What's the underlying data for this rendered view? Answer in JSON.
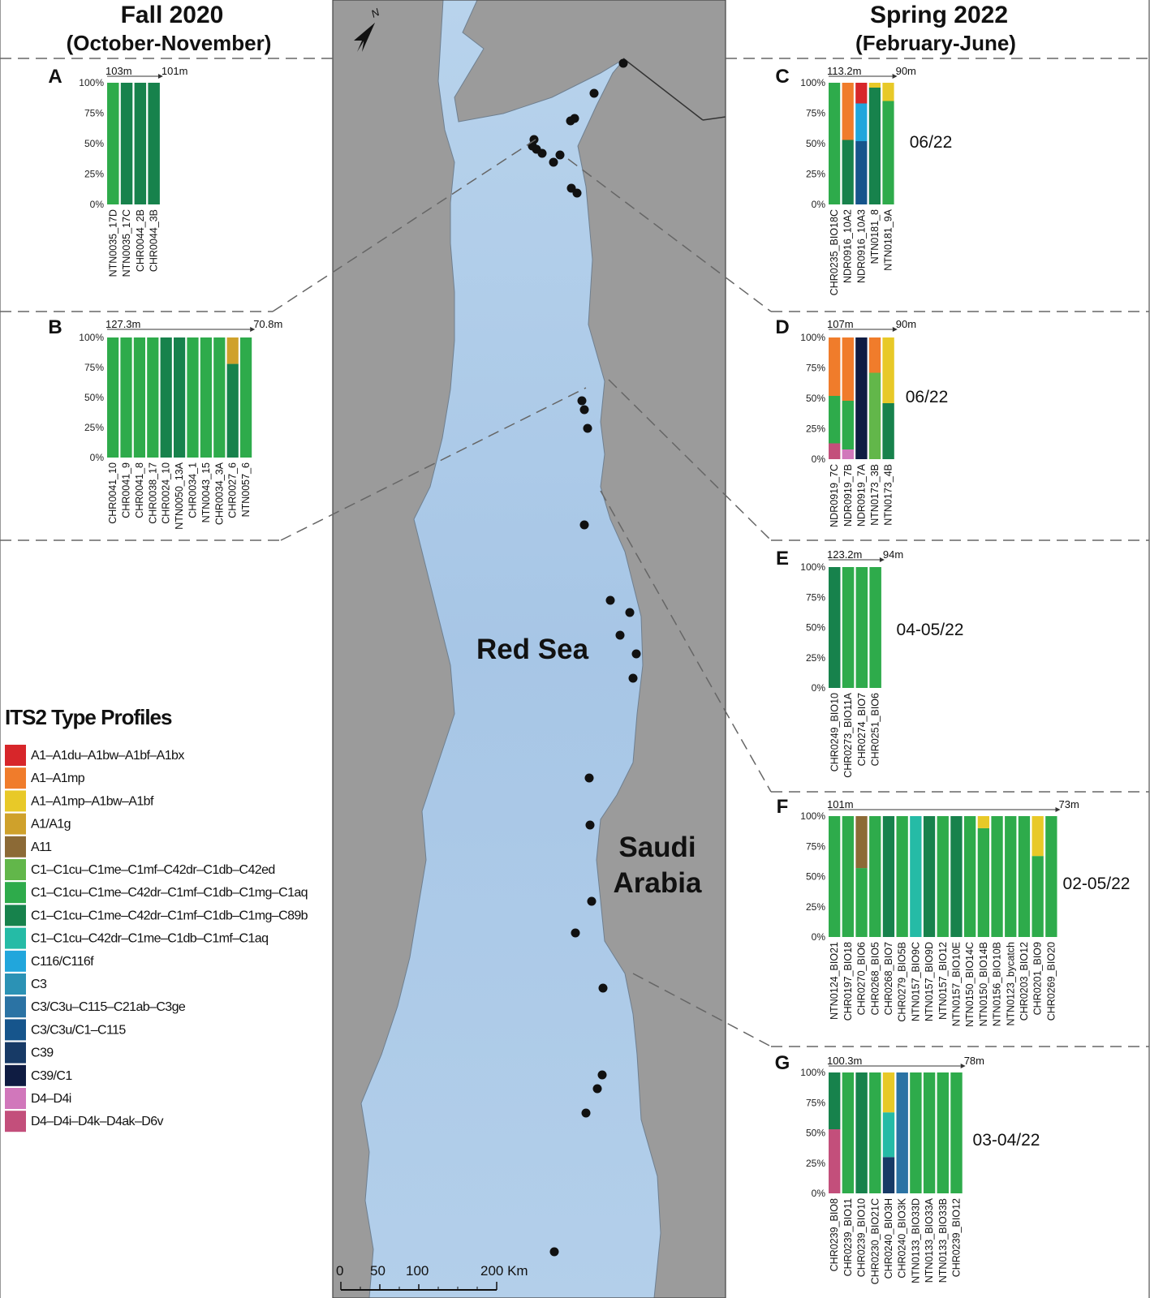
{
  "headers": {
    "left_title": "Fall 2020",
    "left_subtitle": "(October-November)",
    "right_title": "Spring 2022",
    "right_subtitle": "(February-June)"
  },
  "map": {
    "sea_label": "Red Sea",
    "land_label_1": "Saudi",
    "land_label_2": "Arabia",
    "north_label": "N",
    "scale_0": "0",
    "scale_50": "50",
    "scale_100": "100",
    "scale_200": "200 Km"
  },
  "legend": {
    "title": "ITS2 Type Profiles",
    "items": [
      {
        "label": "A1–A1du–A1bw–A1bf–A1bx",
        "color": "#d7262a"
      },
      {
        "label": "A1–A1mp",
        "color": "#f07c2b"
      },
      {
        "label": "A1–A1mp–A1bw–A1bf",
        "color": "#e8c928"
      },
      {
        "label": "A1/A1g",
        "color": "#cfa12b"
      },
      {
        "label": "A11",
        "color": "#8c6a36"
      },
      {
        "label": "C1–C1cu–C1me–C1mf–C42dr–C1db–C42ed",
        "color": "#62b74a"
      },
      {
        "label": "C1–C1cu–C1me–C42dr–C1mf–C1db–C1mg–C1aq",
        "color": "#2eab4b"
      },
      {
        "label": "C1–C1cu–C1me–C42dr–C1mf–C1db–C1mg–C89b",
        "color": "#17824c"
      },
      {
        "label": "C1–C1cu–C42dr–C1me–C1db–C1mf–C1aq",
        "color": "#25bba6"
      },
      {
        "label": "C116/C116f",
        "color": "#21a6dc"
      },
      {
        "label": "C3",
        "color": "#2b92b5"
      },
      {
        "label": "C3/C3u–C115–C21ab–C3ge",
        "color": "#2b73a4"
      },
      {
        "label": "C3/C3u/C1–C115",
        "color": "#16558c"
      },
      {
        "label": "C39",
        "color": "#173a66"
      },
      {
        "label": "C39/C1",
        "color": "#0f1c42"
      },
      {
        "label": "D4–D4i",
        "color": "#d177bb"
      },
      {
        "label": "D4–D4i–D4k–D4ak–D6v",
        "color": "#c34f7b"
      }
    ]
  },
  "chart_data": [
    {
      "type": "bar",
      "panel": "A",
      "season": "Fall 2020",
      "depth_start": "103m",
      "depth_end": "101m",
      "ytick_labels": [
        "100%",
        "75%",
        "50%",
        "25%",
        "0%"
      ],
      "categories": [
        "NTN0035_17D",
        "NTN0035_17C",
        "CHR0044_2B",
        "CHR0044_3B"
      ],
      "stacks": [
        [
          [
            "C1–C1cu–C1me–C42dr–C1mf–C1db–C1mg–C1aq",
            100
          ]
        ],
        [
          [
            "C1–C1cu–C1me–C42dr–C1mf–C1db–C1mg–C89b",
            100
          ]
        ],
        [
          [
            "C1–C1cu–C1me–C42dr–C1mf–C1db–C1mg–C89b",
            100
          ]
        ],
        [
          [
            "C1–C1cu–C1me–C42dr–C1mf–C1db–C1mg–C89b",
            100
          ]
        ]
      ]
    },
    {
      "type": "bar",
      "panel": "B",
      "season": "Fall 2020",
      "depth_start": "127.3m",
      "depth_end": "70.8m",
      "ytick_labels": [
        "100%",
        "75%",
        "50%",
        "25%",
        "0%"
      ],
      "categories": [
        "CHR0041_10",
        "CHR0041_9",
        "CHR0041_8",
        "CHR0038_17",
        "CHR0024_10",
        "NTN0050_13A",
        "CHR0034_1",
        "NTN0043_15",
        "CHR0034_3A",
        "CHR0027_6",
        "NTN0057_6"
      ],
      "stacks": [
        [
          [
            "C1–C1cu–C1me–C42dr–C1mf–C1db–C1mg–C1aq",
            100
          ]
        ],
        [
          [
            "C1–C1cu–C1me–C42dr–C1mf–C1db–C1mg–C1aq",
            100
          ]
        ],
        [
          [
            "C1–C1cu–C1me–C42dr–C1mf–C1db–C1mg–C1aq",
            100
          ]
        ],
        [
          [
            "C1–C1cu–C1me–C42dr–C1mf–C1db–C1mg–C1aq",
            100
          ]
        ],
        [
          [
            "C1–C1cu–C1me–C42dr–C1mf–C1db–C1mg–C89b",
            100
          ]
        ],
        [
          [
            "C1–C1cu–C1me–C42dr–C1mf–C1db–C1mg–C89b",
            100
          ]
        ],
        [
          [
            "C1–C1cu–C1me–C42dr–C1mf–C1db–C1mg–C1aq",
            100
          ]
        ],
        [
          [
            "C1–C1cu–C1me–C42dr–C1mf–C1db–C1mg–C1aq",
            100
          ]
        ],
        [
          [
            "C1–C1cu–C1me–C42dr–C1mf–C1db–C1mg–C1aq",
            100
          ]
        ],
        [
          [
            "C1–C1cu–C1me–C42dr–C1mf–C1db–C1mg–C89b",
            78
          ],
          [
            "A1/A1g",
            22
          ]
        ],
        [
          [
            "C1–C1cu–C1me–C42dr–C1mf–C1db–C1mg–C1aq",
            100
          ]
        ]
      ]
    },
    {
      "type": "bar",
      "panel": "C",
      "season": "Spring 2022",
      "date_label": "06/22",
      "depth_start": "113.2m",
      "depth_end": "90m",
      "ytick_labels": [
        "100%",
        "75%",
        "50%",
        "25%",
        "0%"
      ],
      "categories": [
        "CHR0235_BIO18C",
        "NDR0916_10A2",
        "NDR0916_10A3",
        "NTN0181_8",
        "NTN0181_9A"
      ],
      "stacks": [
        [
          [
            "C1–C1cu–C1me–C42dr–C1mf–C1db–C1mg–C1aq",
            100
          ]
        ],
        [
          [
            "C1–C1cu–C1me–C42dr–C1mf–C1db–C1mg–C89b",
            53
          ],
          [
            "A1–A1mp",
            47
          ]
        ],
        [
          [
            "C3/C3u/C1–C115",
            52
          ],
          [
            "C116/C116f",
            31
          ],
          [
            "A1–A1du–A1bw–A1bf–A1bx",
            17
          ]
        ],
        [
          [
            "C1–C1cu–C1me–C42dr–C1mf–C1db–C1mg–C89b",
            96
          ],
          [
            "A1–A1mp–A1bw–A1bf",
            4
          ]
        ],
        [
          [
            "C1–C1cu–C1me–C42dr–C1mf–C1db–C1mg–C1aq",
            85
          ],
          [
            "A1–A1mp–A1bw–A1bf",
            15
          ]
        ]
      ]
    },
    {
      "type": "bar",
      "panel": "D",
      "season": "Spring 2022",
      "date_label": "06/22",
      "depth_start": "107m",
      "depth_end": "90m",
      "ytick_labels": [
        "100%",
        "75%",
        "50%",
        "25%",
        "0%"
      ],
      "categories": [
        "NDR0919_7C",
        "NDR0919_7B",
        "NDR0919_7A",
        "NTN0173_3B",
        "NTN0173_4B"
      ],
      "stacks": [
        [
          [
            "D4–D4i–D4k–D4ak–D6v",
            13
          ],
          [
            "C1–C1cu–C1me–C42dr–C1mf–C1db–C1mg–C1aq",
            39
          ],
          [
            "A1–A1mp",
            48
          ]
        ],
        [
          [
            "D4–D4i",
            8
          ],
          [
            "C1–C1cu–C1me–C42dr–C1mf–C1db–C1mg–C1aq",
            40
          ],
          [
            "A1–A1mp",
            52
          ]
        ],
        [
          [
            "C39/C1",
            100
          ]
        ],
        [
          [
            "C1–C1cu–C1me–C1mf–C42dr–C1db–C42ed",
            71
          ],
          [
            "A1–A1mp",
            29
          ]
        ],
        [
          [
            "C1–C1cu–C1me–C42dr–C1mf–C1db–C1mg–C89b",
            46
          ],
          [
            "A1–A1mp–A1bw–A1bf",
            54
          ]
        ]
      ]
    },
    {
      "type": "bar",
      "panel": "E",
      "season": "Spring 2022",
      "date_label": "04-05/22",
      "depth_start": "123.2m",
      "depth_end": "94m",
      "ytick_labels": [
        "100%",
        "75%",
        "50%",
        "25%",
        "0%"
      ],
      "categories": [
        "CHR0249_BIO10",
        "CHR0273_BIO11A",
        "CHR0274_BIO7",
        "CHR0251_BIO6"
      ],
      "stacks": [
        [
          [
            "C1–C1cu–C1me–C42dr–C1mf–C1db–C1mg–C89b",
            100
          ]
        ],
        [
          [
            "C1–C1cu–C1me–C42dr–C1mf–C1db–C1mg–C1aq",
            100
          ]
        ],
        [
          [
            "C1–C1cu–C1me–C42dr–C1mf–C1db–C1mg–C1aq",
            100
          ]
        ],
        [
          [
            "C1–C1cu–C1me–C42dr–C1mf–C1db–C1mg–C1aq",
            100
          ]
        ]
      ]
    },
    {
      "type": "bar",
      "panel": "F",
      "season": "Spring 2022",
      "date_label": "02-05/22",
      "depth_start": "101m",
      "depth_end": "73m",
      "ytick_labels": [
        "100%",
        "75%",
        "50%",
        "25%",
        "0%"
      ],
      "categories": [
        "NTN0124_BIO21",
        "CHR0197_BIO18",
        "CHR0270_BIO6",
        "CHR0268_BIO5",
        "CHR0268_BIO7",
        "CHR0279_BIO5B",
        "NTN0157_BIO9C",
        "NTN0157_BIO9D",
        "NTN0157_BIO12",
        "NTN0157_BIO10E",
        "NTN0150_BIO14C",
        "NTN0150_BIO14B",
        "NTN0156_BIO10B",
        "NTN0123_bycatch",
        "CHR0203_BIO12",
        "CHR0201_BIO9",
        "CHR0269_BIO20"
      ],
      "stacks": [
        [
          [
            "C1–C1cu–C1me–C42dr–C1mf–C1db–C1mg–C1aq",
            100
          ]
        ],
        [
          [
            "C1–C1cu–C1me–C42dr–C1mf–C1db–C1mg–C1aq",
            100
          ]
        ],
        [
          [
            "C1–C1cu–C1me–C42dr–C1mf–C1db–C1mg–C1aq",
            57
          ],
          [
            "A11",
            43
          ]
        ],
        [
          [
            "C1–C1cu–C1me–C42dr–C1mf–C1db–C1mg–C1aq",
            100
          ]
        ],
        [
          [
            "C1–C1cu–C1me–C42dr–C1mf–C1db–C1mg–C89b",
            100
          ]
        ],
        [
          [
            "C1–C1cu–C1me–C42dr–C1mf–C1db–C1mg–C1aq",
            100
          ]
        ],
        [
          [
            "C1–C1cu–C42dr–C1me–C1db–C1mf–C1aq",
            100
          ]
        ],
        [
          [
            "C1–C1cu–C1me–C42dr–C1mf–C1db–C1mg–C89b",
            100
          ]
        ],
        [
          [
            "C1–C1cu–C1me–C42dr–C1mf–C1db–C1mg–C1aq",
            100
          ]
        ],
        [
          [
            "C1–C1cu–C1me–C42dr–C1mf–C1db–C1mg–C89b",
            100
          ]
        ],
        [
          [
            "C1–C1cu–C1me–C42dr–C1mf–C1db–C1mg–C1aq",
            100
          ]
        ],
        [
          [
            "C1–C1cu–C1me–C42dr–C1mf–C1db–C1mg–C1aq",
            90
          ],
          [
            "A1–A1mp–A1bw–A1bf",
            10
          ]
        ],
        [
          [
            "C1–C1cu–C1me–C42dr–C1mf–C1db–C1mg–C1aq",
            100
          ]
        ],
        [
          [
            "C1–C1cu–C1me–C42dr–C1mf–C1db–C1mg–C1aq",
            100
          ]
        ],
        [
          [
            "C1–C1cu–C1me–C42dr–C1mf–C1db–C1mg–C1aq",
            100
          ]
        ],
        [
          [
            "C1–C1cu–C1me–C42dr–C1mf–C1db–C1mg–C1aq",
            67
          ],
          [
            "A1–A1mp–A1bw–A1bf",
            33
          ]
        ],
        [
          [
            "C1–C1cu–C1me–C42dr–C1mf–C1db–C1mg–C1aq",
            100
          ]
        ]
      ]
    },
    {
      "type": "bar",
      "panel": "G",
      "season": "Spring 2022",
      "date_label": "03-04/22",
      "depth_start": "100.3m",
      "depth_end": "78m",
      "ytick_labels": [
        "100%",
        "75%",
        "50%",
        "25%",
        "0%"
      ],
      "categories": [
        "CHR0239_BIO8",
        "CHR0239_BIO11",
        "CHR0239_BIO10",
        "CHR0230_BIO21C",
        "CHR0240_BIO3H",
        "CHR0240_BIO3K",
        "NTN0133_BIO33D",
        "NTN0133_BIO33A",
        "NTN0133_BIO33B",
        "CHR0239_BIO12"
      ],
      "stacks": [
        [
          [
            "D4–D4i–D4k–D4ak–D6v",
            53
          ],
          [
            "C1–C1cu–C1me–C42dr–C1mf–C1db–C1mg–C89b",
            47
          ]
        ],
        [
          [
            "C1–C1cu–C1me–C42dr–C1mf–C1db–C1mg–C1aq",
            100
          ]
        ],
        [
          [
            "C1–C1cu–C1me–C42dr–C1mf–C1db–C1mg–C89b",
            100
          ]
        ],
        [
          [
            "C1–C1cu–C1me–C42dr–C1mf–C1db–C1mg–C1aq",
            100
          ]
        ],
        [
          [
            "C39",
            30
          ],
          [
            "C1–C1cu–C42dr–C1me–C1db–C1mf–C1aq",
            37
          ],
          [
            "A1–A1mp–A1bw–A1bf",
            33
          ]
        ],
        [
          [
            "C3/C3u–C115–C21ab–C3ge",
            100
          ]
        ],
        [
          [
            "C1–C1cu–C1me–C42dr–C1mf–C1db–C1mg–C1aq",
            100
          ]
        ],
        [
          [
            "C1–C1cu–C1me–C42dr–C1mf–C1db–C1mg–C1aq",
            100
          ]
        ],
        [
          [
            "C1–C1cu–C1me–C42dr–C1mf–C1db–C1mg–C1aq",
            100
          ]
        ],
        [
          [
            "C1–C1cu–C1me–C42dr–C1mf–C1db–C1mg–C1aq",
            100
          ]
        ]
      ]
    }
  ]
}
